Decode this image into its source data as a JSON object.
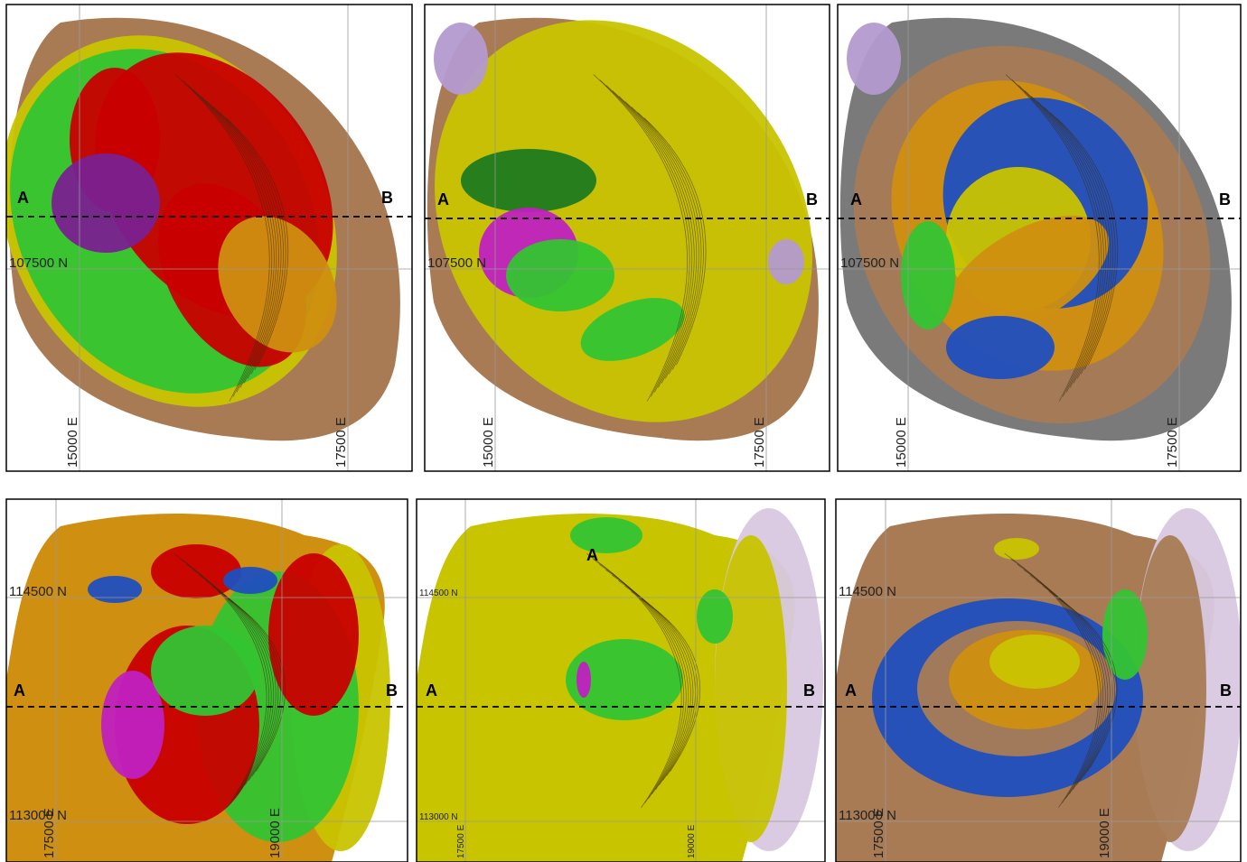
{
  "panels": [
    {
      "section_start": "A",
      "section_end": "B",
      "northings": [
        "107500 N"
      ],
      "eastings": [
        "15000 E",
        "17500 E"
      ]
    },
    {
      "section_start": "A",
      "section_end": "B",
      "northings": [
        "107500 N"
      ],
      "eastings": [
        "15000 E",
        "17500 E"
      ]
    },
    {
      "section_start": "A",
      "section_end": "B",
      "northings": [
        "107500 N"
      ],
      "eastings": [
        "15000 E",
        "17500 E"
      ]
    },
    {
      "section_start": "A",
      "section_end": "B",
      "northings": [
        "114500 N",
        "113000 N"
      ],
      "eastings": [
        "17500 E",
        "19000 E"
      ]
    },
    {
      "section_start": "A",
      "section_end": "B",
      "northings": [
        "114500 N",
        "113000 N"
      ],
      "eastings": [
        "17500 E",
        "19000 E"
      ],
      "annotation": "A"
    },
    {
      "section_start": "A",
      "section_end": "B",
      "northings": [
        "114500 N",
        "113000 N"
      ],
      "eastings": [
        "17500 E",
        "19000 E"
      ]
    }
  ]
}
